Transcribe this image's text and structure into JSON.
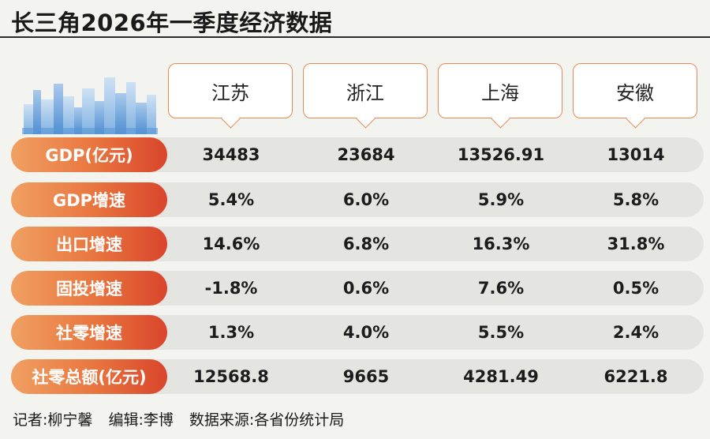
{
  "title": "长三角2026年一季度经济数据",
  "regions": [
    "江苏",
    "浙江",
    "上海",
    "安徽"
  ],
  "rows": [
    {
      "label": "GDP(亿元)",
      "values": [
        "34483",
        "23684",
        "13526.91",
        "13014"
      ]
    },
    {
      "label": "GDP增速",
      "values": [
        "5.4%",
        "6.0%",
        "5.9%",
        "5.8%"
      ]
    },
    {
      "label": "出口增速",
      "values": [
        "14.6%",
        "6.8%",
        "16.3%",
        "31.8%"
      ]
    },
    {
      "label": "固投增速",
      "values": [
        "-1.8%",
        "0.6%",
        "7.6%",
        "0.5%"
      ]
    },
    {
      "label": "社零增速",
      "values": [
        "1.3%",
        "4.0%",
        "5.5%",
        "2.4%"
      ]
    },
    {
      "label": "社零总额(亿元)",
      "values": [
        "12568.8",
        "9665",
        "4281.49",
        "6221.8"
      ]
    }
  ],
  "footer": {
    "reporter": "记者:柳宁馨",
    "editor": "编辑:李博",
    "source": "数据来源:各省份统计局"
  },
  "colors": {
    "label_gradient_start": "#f0a062",
    "label_gradient_end": "#d9452c",
    "row_background": "#e4e5e1",
    "card_border": "#e58a52",
    "page_background": "#f3f4ef"
  }
}
